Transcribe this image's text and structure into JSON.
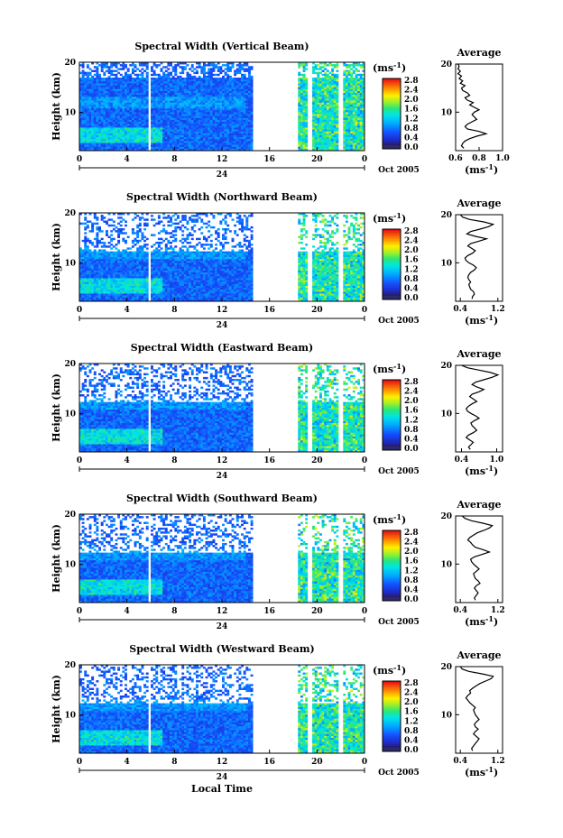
{
  "chart_data": [
    {
      "type": "heatmap",
      "title": "Spectral Width (Vertical Beam)",
      "ylabel": "Height (km)",
      "x_ticks": [
        "0",
        "4",
        "8",
        "12",
        "16",
        "20",
        "0"
      ],
      "y_ticks": [
        "20",
        "10"
      ],
      "date_marker": "24",
      "date_label": "Oct 2005",
      "colorbar": {
        "unit": "(ms",
        "unit_exp": "-1",
        "unit_close": ")",
        "ticks": [
          "2.8",
          "2.4",
          "2.0",
          "1.6",
          "1.2",
          "0.8",
          "0.4",
          "0.0"
        ],
        "range": [
          0,
          2.8
        ]
      },
      "data_gaps_hours": [
        [
          14.6,
          18.3
        ],
        [
          19.2,
          19.6
        ],
        [
          21.8,
          22.2
        ]
      ],
      "avg_profile": {
        "title": "Average",
        "xlabel": "(ms",
        "xlabel_exp": "-1",
        "xlabel_close": ")",
        "x_ticks": [
          "0.6",
          "0.8",
          "1.0"
        ],
        "xlim": [
          0.6,
          1.0
        ],
        "y_ticks": [
          "20",
          "10"
        ],
        "ylim": [
          2,
          20
        ],
        "points": [
          [
            0.67,
            2.5
          ],
          [
            0.65,
            3
          ],
          [
            0.66,
            3.5
          ],
          [
            0.68,
            4
          ],
          [
            0.72,
            4.5
          ],
          [
            0.78,
            5
          ],
          [
            0.86,
            5.5
          ],
          [
            0.8,
            6
          ],
          [
            0.7,
            6.5
          ],
          [
            0.68,
            7
          ],
          [
            0.7,
            7.5
          ],
          [
            0.74,
            8
          ],
          [
            0.78,
            8.5
          ],
          [
            0.76,
            9
          ],
          [
            0.74,
            9.5
          ],
          [
            0.76,
            10
          ],
          [
            0.8,
            10.5
          ],
          [
            0.76,
            11
          ],
          [
            0.72,
            11.5
          ],
          [
            0.75,
            12
          ],
          [
            0.7,
            12.5
          ],
          [
            0.68,
            13
          ],
          [
            0.72,
            13.5
          ],
          [
            0.7,
            14
          ],
          [
            0.66,
            14.5
          ],
          [
            0.65,
            15
          ],
          [
            0.68,
            15.5
          ],
          [
            0.64,
            16
          ],
          [
            0.66,
            16.5
          ],
          [
            0.63,
            17
          ],
          [
            0.65,
            17.5
          ],
          [
            0.62,
            18
          ],
          [
            0.64,
            18.5
          ],
          [
            0.62,
            19
          ],
          [
            0.63,
            19.5
          ],
          [
            0.62,
            20
          ]
        ]
      }
    },
    {
      "type": "heatmap",
      "title": "Spectral Width (Northward Beam)",
      "ylabel": "Height (km)",
      "x_ticks": [
        "0",
        "4",
        "8",
        "12",
        "16",
        "20",
        "0"
      ],
      "y_ticks": [
        "20",
        "10"
      ],
      "date_marker": "24",
      "date_label": "Oct 2005",
      "colorbar": {
        "unit": "(ms",
        "unit_exp": "-1",
        "unit_close": ")",
        "ticks": [
          "2.8",
          "2.4",
          "2.0",
          "1.6",
          "1.2",
          "0.8",
          "0.4",
          "0.0"
        ],
        "range": [
          0,
          2.8
        ]
      },
      "data_gaps_hours": [
        [
          14.6,
          18.3
        ],
        [
          19.2,
          19.6
        ],
        [
          21.8,
          22.2
        ]
      ],
      "avg_profile": {
        "title": "Average",
        "xlabel": "(ms",
        "xlabel_exp": "-1",
        "xlabel_close": ")",
        "x_ticks": [
          "0.4",
          "1.2"
        ],
        "xlim": [
          0.3,
          1.3
        ],
        "y_ticks": [
          "20",
          "10"
        ],
        "ylim": [
          2,
          20
        ],
        "points": [
          [
            0.65,
            2.5
          ],
          [
            0.66,
            3
          ],
          [
            0.7,
            3.5
          ],
          [
            0.68,
            4
          ],
          [
            0.62,
            4.5
          ],
          [
            0.6,
            5
          ],
          [
            0.58,
            5.5
          ],
          [
            0.62,
            6
          ],
          [
            0.58,
            6.5
          ],
          [
            0.56,
            7
          ],
          [
            0.58,
            7.5
          ],
          [
            0.62,
            8
          ],
          [
            0.7,
            8.5
          ],
          [
            0.74,
            9
          ],
          [
            0.68,
            9.5
          ],
          [
            0.58,
            10
          ],
          [
            0.52,
            10.5
          ],
          [
            0.5,
            11
          ],
          [
            0.56,
            11.5
          ],
          [
            0.66,
            12
          ],
          [
            0.72,
            12.5
          ],
          [
            0.64,
            13
          ],
          [
            0.56,
            13.5
          ],
          [
            0.62,
            14
          ],
          [
            0.8,
            14.5
          ],
          [
            0.96,
            15
          ],
          [
            0.72,
            15.5
          ],
          [
            0.54,
            16
          ],
          [
            0.62,
            16.5
          ],
          [
            0.82,
            17
          ],
          [
            1.0,
            17.5
          ],
          [
            1.1,
            18
          ],
          [
            0.9,
            18.5
          ],
          [
            0.6,
            19
          ],
          [
            0.45,
            19.5
          ],
          [
            0.4,
            20
          ]
        ]
      }
    },
    {
      "type": "heatmap",
      "title": "Spectral Width (Eastward Beam)",
      "ylabel": "Height (km)",
      "x_ticks": [
        "0",
        "4",
        "8",
        "12",
        "16",
        "20",
        "0"
      ],
      "y_ticks": [
        "20",
        "10"
      ],
      "date_marker": "24",
      "date_label": "Oct 2005",
      "colorbar": {
        "unit": "(ms",
        "unit_exp": "-1",
        "unit_close": ")",
        "ticks": [
          "2.8",
          "2.4",
          "2.0",
          "1.6",
          "1.2",
          "0.8",
          "0.4",
          "0.0"
        ],
        "range": [
          0,
          2.8
        ]
      },
      "data_gaps_hours": [
        [
          14.6,
          18.3
        ],
        [
          19.2,
          19.6
        ],
        [
          21.8,
          22.2
        ]
      ],
      "avg_profile": {
        "title": "Average",
        "xlabel": "(ms",
        "xlabel_exp": "-1",
        "xlabel_close": ")",
        "x_ticks": [
          "0.4",
          "1.0"
        ],
        "xlim": [
          0.3,
          1.1
        ],
        "y_ticks": [
          "20",
          "10"
        ],
        "ylim": [
          2,
          20
        ],
        "points": [
          [
            0.55,
            2.5
          ],
          [
            0.52,
            3
          ],
          [
            0.56,
            3.5
          ],
          [
            0.6,
            4
          ],
          [
            0.54,
            4.5
          ],
          [
            0.48,
            5
          ],
          [
            0.52,
            5.5
          ],
          [
            0.6,
            6
          ],
          [
            0.66,
            6.5
          ],
          [
            0.62,
            7
          ],
          [
            0.58,
            7.5
          ],
          [
            0.56,
            8
          ],
          [
            0.62,
            8.5
          ],
          [
            0.7,
            9
          ],
          [
            0.64,
            9.5
          ],
          [
            0.56,
            10
          ],
          [
            0.5,
            10.5
          ],
          [
            0.48,
            11
          ],
          [
            0.52,
            11.5
          ],
          [
            0.58,
            12
          ],
          [
            0.66,
            12.5
          ],
          [
            0.6,
            13
          ],
          [
            0.54,
            13.5
          ],
          [
            0.58,
            14
          ],
          [
            0.7,
            14.5
          ],
          [
            0.78,
            15
          ],
          [
            0.66,
            15.5
          ],
          [
            0.58,
            16
          ],
          [
            0.64,
            16.5
          ],
          [
            0.78,
            17
          ],
          [
            0.92,
            17.5
          ],
          [
            1.02,
            18
          ],
          [
            0.9,
            18.5
          ],
          [
            0.7,
            19
          ],
          [
            0.5,
            19.5
          ],
          [
            0.4,
            20
          ]
        ]
      }
    },
    {
      "type": "heatmap",
      "title": "Spectral Width (Southward Beam)",
      "ylabel": "Height (km)",
      "x_ticks": [
        "0",
        "4",
        "8",
        "12",
        "16",
        "20",
        "0"
      ],
      "y_ticks": [
        "20",
        "10"
      ],
      "date_marker": "24",
      "date_label": "Oct 2005",
      "colorbar": {
        "unit": "(ms",
        "unit_exp": "-1",
        "unit_close": ")",
        "ticks": [
          "2.8",
          "2.4",
          "2.0",
          "1.6",
          "1.2",
          "0.8",
          "0.4",
          "0.0"
        ],
        "range": [
          0,
          2.8
        ]
      },
      "data_gaps_hours": [
        [
          14.6,
          18.3
        ],
        [
          19.2,
          19.6
        ],
        [
          21.8,
          22.2
        ]
      ],
      "avg_profile": {
        "title": "Average",
        "xlabel": "(ms",
        "xlabel_exp": "-1",
        "xlabel_close": ")",
        "x_ticks": [
          "0.4",
          "1.2"
        ],
        "xlim": [
          0.3,
          1.3
        ],
        "y_ticks": [
          "20",
          "10"
        ],
        "ylim": [
          2,
          20
        ],
        "points": [
          [
            0.72,
            2.5
          ],
          [
            0.7,
            3
          ],
          [
            0.74,
            3.5
          ],
          [
            0.78,
            4
          ],
          [
            0.74,
            4.5
          ],
          [
            0.7,
            5
          ],
          [
            0.74,
            5.5
          ],
          [
            0.82,
            6
          ],
          [
            0.78,
            6.5
          ],
          [
            0.72,
            7
          ],
          [
            0.7,
            7.5
          ],
          [
            0.68,
            8
          ],
          [
            0.74,
            8.5
          ],
          [
            0.8,
            9
          ],
          [
            0.74,
            9.5
          ],
          [
            0.68,
            10
          ],
          [
            0.64,
            10.5
          ],
          [
            0.62,
            11
          ],
          [
            0.7,
            11.5
          ],
          [
            0.86,
            12
          ],
          [
            1.02,
            12.5
          ],
          [
            0.88,
            13
          ],
          [
            0.72,
            13.5
          ],
          [
            0.66,
            14
          ],
          [
            0.62,
            14.5
          ],
          [
            0.56,
            15
          ],
          [
            0.6,
            15.5
          ],
          [
            0.68,
            16
          ],
          [
            0.76,
            16.5
          ],
          [
            0.9,
            17
          ],
          [
            1.02,
            17.5
          ],
          [
            1.08,
            18
          ],
          [
            0.88,
            18.5
          ],
          [
            0.64,
            19
          ],
          [
            0.5,
            19.5
          ],
          [
            0.44,
            20
          ]
        ]
      }
    },
    {
      "type": "heatmap",
      "title": "Spectral Width (Westward Beam)",
      "ylabel": "Height (km)",
      "xlabel": "Local Time",
      "x_ticks": [
        "0",
        "4",
        "8",
        "12",
        "16",
        "20",
        "0"
      ],
      "y_ticks": [
        "20",
        "10"
      ],
      "date_marker": "24",
      "date_label": "Oct 2005",
      "colorbar": {
        "unit": "(ms",
        "unit_exp": "-1",
        "unit_close": ")",
        "ticks": [
          "2.8",
          "2.4",
          "2.0",
          "1.6",
          "1.2",
          "0.8",
          "0.4",
          "0.0"
        ],
        "range": [
          0,
          2.8
        ]
      },
      "data_gaps_hours": [
        [
          14.6,
          18.3
        ],
        [
          19.2,
          19.6
        ],
        [
          21.8,
          22.2
        ]
      ],
      "avg_profile": {
        "title": "Average",
        "xlabel": "(ms",
        "xlabel_exp": "-1",
        "xlabel_close": ")",
        "x_ticks": [
          "0.4",
          "1.2"
        ],
        "xlim": [
          0.3,
          1.3
        ],
        "y_ticks": [
          "20",
          "10"
        ],
        "ylim": [
          2,
          20
        ],
        "points": [
          [
            0.66,
            2.5
          ],
          [
            0.64,
            3
          ],
          [
            0.68,
            3.5
          ],
          [
            0.72,
            4
          ],
          [
            0.76,
            4.5
          ],
          [
            0.8,
            5
          ],
          [
            0.74,
            5.5
          ],
          [
            0.68,
            6
          ],
          [
            0.72,
            6.5
          ],
          [
            0.78,
            7
          ],
          [
            0.72,
            7.5
          ],
          [
            0.7,
            8
          ],
          [
            0.74,
            8.5
          ],
          [
            0.8,
            9
          ],
          [
            0.76,
            9.5
          ],
          [
            0.72,
            10
          ],
          [
            0.7,
            10.5
          ],
          [
            0.68,
            11
          ],
          [
            0.72,
            11.5
          ],
          [
            0.66,
            12
          ],
          [
            0.6,
            12.5
          ],
          [
            0.56,
            13
          ],
          [
            0.52,
            13.5
          ],
          [
            0.56,
            14
          ],
          [
            0.62,
            14.5
          ],
          [
            0.6,
            15
          ],
          [
            0.66,
            15.5
          ],
          [
            0.74,
            16
          ],
          [
            0.82,
            16.5
          ],
          [
            0.94,
            17
          ],
          [
            1.06,
            17.5
          ],
          [
            1.1,
            18
          ],
          [
            0.86,
            18.5
          ],
          [
            0.58,
            19
          ],
          [
            0.44,
            19.5
          ],
          [
            0.4,
            20
          ]
        ]
      }
    }
  ]
}
